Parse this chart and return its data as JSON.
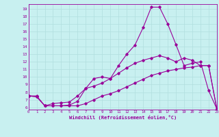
{
  "xlabel": "Windchill (Refroidissement éolien,°C)",
  "bg_color": "#c8f0f0",
  "line_color": "#990099",
  "grid_color": "#b0dede",
  "x_ticks": [
    0,
    1,
    2,
    3,
    4,
    5,
    6,
    7,
    8,
    9,
    10,
    11,
    12,
    13,
    14,
    15,
    16,
    17,
    18,
    19,
    20,
    21,
    22,
    23
  ],
  "y_ticks": [
    6,
    7,
    8,
    9,
    10,
    11,
    12,
    13,
    14,
    15,
    16,
    17,
    18,
    19
  ],
  "xlim": [
    0,
    23
  ],
  "ylim": [
    5.7,
    19.6
  ],
  "line1_x": [
    0,
    1,
    2,
    3,
    4,
    5,
    6,
    7,
    8,
    9,
    10,
    11,
    12,
    13,
    14,
    15,
    16,
    17,
    18,
    19,
    20,
    21,
    22,
    23
  ],
  "line1_y": [
    7.5,
    7.5,
    6.2,
    6.2,
    6.2,
    6.3,
    6.8,
    8.5,
    9.8,
    10.0,
    9.8,
    11.5,
    13.0,
    14.2,
    16.5,
    19.2,
    19.2,
    17.0,
    14.3,
    11.5,
    11.8,
    12.0,
    8.2,
    5.8
  ],
  "line2_x": [
    0,
    1,
    2,
    3,
    4,
    5,
    6,
    7,
    8,
    9,
    10,
    11,
    12,
    13,
    14,
    15,
    16,
    17,
    18,
    19,
    20,
    21,
    22,
    23
  ],
  "line2_y": [
    7.5,
    7.4,
    6.2,
    6.5,
    6.6,
    6.7,
    7.5,
    8.5,
    8.8,
    9.2,
    9.8,
    10.5,
    11.2,
    11.8,
    12.2,
    12.5,
    12.8,
    12.5,
    12.0,
    12.5,
    12.2,
    11.5,
    11.5,
    5.8
  ],
  "line3_x": [
    0,
    1,
    2,
    3,
    4,
    5,
    6,
    7,
    8,
    9,
    10,
    11,
    12,
    13,
    14,
    15,
    16,
    17,
    18,
    19,
    20,
    21,
    22,
    23
  ],
  "line3_y": [
    7.5,
    7.4,
    6.2,
    6.2,
    6.2,
    6.2,
    6.2,
    6.5,
    7.0,
    7.5,
    7.8,
    8.2,
    8.7,
    9.2,
    9.7,
    10.2,
    10.5,
    10.8,
    11.0,
    11.2,
    11.3,
    11.5,
    11.5,
    5.8
  ]
}
